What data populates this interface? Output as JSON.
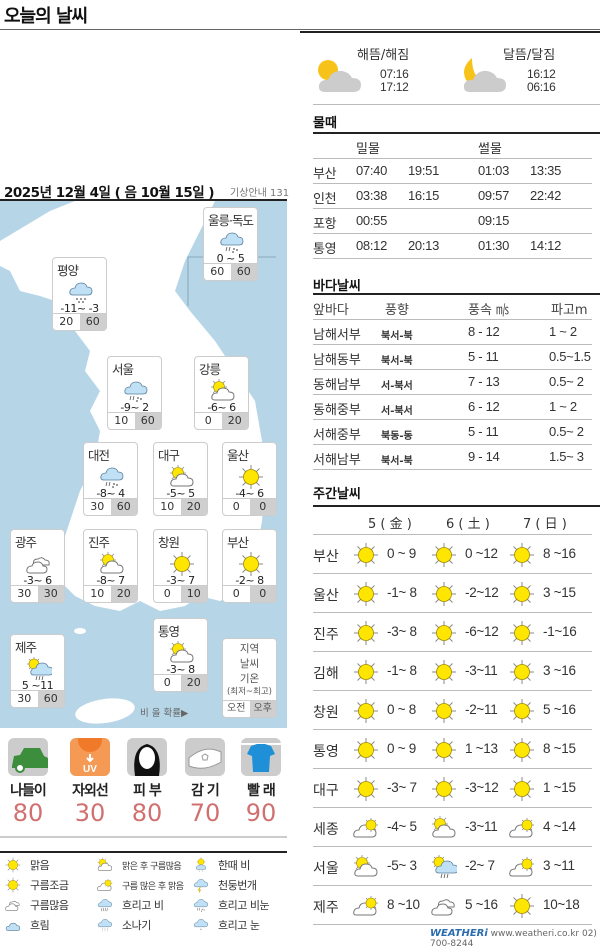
{
  "header": {
    "title": "오늘의 날씨"
  },
  "date_line": {
    "date": "2025년 12월 4일 ( 음 10월 15일 )",
    "hotline": "기상안내 131"
  },
  "map": {
    "cities": [
      {
        "name": "울릉·독도",
        "icon": "rainsnow",
        "temp": "0 ~ 5",
        "am": "60",
        "pm": "60"
      },
      {
        "name": "평양",
        "icon": "snow",
        "temp": "-11~ -3",
        "am": "20",
        "pm": "60"
      },
      {
        "name": "서울",
        "icon": "rainsnow",
        "temp": "-9~ 2",
        "am": "10",
        "pm": "60"
      },
      {
        "name": "강릉",
        "icon": "suncloud",
        "temp": "-6~ 6",
        "am": "0",
        "pm": "20"
      },
      {
        "name": "대전",
        "icon": "rainsnow",
        "temp": "-8~ 4",
        "am": "30",
        "pm": "60"
      },
      {
        "name": "대구",
        "icon": "suncloud",
        "temp": "-5~ 5",
        "am": "10",
        "pm": "20"
      },
      {
        "name": "울산",
        "icon": "sun",
        "temp": "-4~ 6",
        "am": "0",
        "pm": "0"
      },
      {
        "name": "광주",
        "icon": "cloudy2",
        "temp": "-3~ 6",
        "am": "30",
        "pm": "30"
      },
      {
        "name": "진주",
        "icon": "suncloud",
        "temp": "-8~ 7",
        "am": "10",
        "pm": "20"
      },
      {
        "name": "창원",
        "icon": "sun",
        "temp": "-3~ 7",
        "am": "0",
        "pm": "10"
      },
      {
        "name": "부산",
        "icon": "sun",
        "temp": "-2~ 8",
        "am": "0",
        "pm": "0"
      },
      {
        "name": "통영",
        "icon": "suncloud",
        "temp": "-3~ 8",
        "am": "0",
        "pm": "20"
      },
      {
        "name": "제주",
        "icon": "sunrain",
        "temp": "5 ~11",
        "am": "30",
        "pm": "60"
      }
    ],
    "legend": {
      "region": "지역",
      "weather": "날씨",
      "temp": "기온",
      "range": "(최저~최고)",
      "am": "오전",
      "pm": "오후",
      "prob_label": "비 올 확률▶"
    }
  },
  "indices": [
    {
      "label": "나들이",
      "value": "80",
      "icon": "car-icon"
    },
    {
      "label": "자외선",
      "value": "30",
      "icon": "uv-sun-icon"
    },
    {
      "label": "피 부",
      "value": "80",
      "icon": "face-icon"
    },
    {
      "label": "감 기",
      "value": "70",
      "icon": "mask-icon"
    },
    {
      "label": "빨 래",
      "value": "90",
      "icon": "laundry-shirt-icon"
    }
  ],
  "weather_legend": [
    {
      "icon": "sun",
      "label": "맑음"
    },
    {
      "icon": "suncloud",
      "label": "맑은 후 구름많음",
      "small": true
    },
    {
      "icon": "sunshower",
      "label": "한때 비"
    },
    {
      "icon": "sun",
      "label": "구름조금"
    },
    {
      "icon": "cloudsun",
      "label": "구름 많은 후 맑음",
      "small": true
    },
    {
      "icon": "thunder",
      "label": "천둥번개"
    },
    {
      "icon": "cloudy2",
      "label": "구름많음"
    },
    {
      "icon": "rain",
      "label": "흐리고 비"
    },
    {
      "icon": "rainsnow",
      "label": "흐리고 비눈"
    },
    {
      "icon": "cloudout",
      "label": "흐림"
    },
    {
      "icon": "shower",
      "label": "소나기"
    },
    {
      "icon": "cloudsnow",
      "label": "흐리고 눈"
    }
  ],
  "sun_moon": {
    "sun_label": "해뜸/해짐",
    "sunrise": "07:16",
    "sunset": "17:12",
    "moon_label": "달뜸/달짐",
    "moonrise": "16:12",
    "moonset": "06:16"
  },
  "tide": {
    "title": "물때",
    "high_label": "밀물",
    "low_label": "썰물",
    "rows": [
      {
        "place": "부산",
        "h1": "07:40",
        "h2": "19:51",
        "l1": "01:03",
        "l2": "13:35"
      },
      {
        "place": "인천",
        "h1": "03:38",
        "h2": "16:15",
        "l1": "09:57",
        "l2": "22:42"
      },
      {
        "place": "포항",
        "h1": "00:55",
        "h2": "",
        "l1": "09:15",
        "l2": ""
      },
      {
        "place": "통영",
        "h1": "08:12",
        "h2": "20:13",
        "l1": "01:30",
        "l2": "14:12"
      }
    ]
  },
  "sea": {
    "title": "바다날씨",
    "headers": [
      "앞바다",
      "풍향",
      "풍속 ㎧",
      "파고m"
    ],
    "rows": [
      {
        "area": "남해서부",
        "dir": "북서-북",
        "speed": "8 - 12",
        "wave": "1 ~ 2"
      },
      {
        "area": "남해동부",
        "dir": "북서-북",
        "speed": "5 - 11",
        "wave": "0.5~1.5"
      },
      {
        "area": "동해남부",
        "dir": "서-북서",
        "speed": "7 - 13",
        "wave": "0.5~ 2"
      },
      {
        "area": "동해중부",
        "dir": "서-북서",
        "speed": "6 - 12",
        "wave": "1 ~ 2"
      },
      {
        "area": "서해중부",
        "dir": "북동-동",
        "speed": "5 - 11",
        "wave": "0.5~ 2"
      },
      {
        "area": "서해남부",
        "dir": "북서-북",
        "speed": "9 - 14",
        "wave": "1.5~ 3"
      }
    ]
  },
  "weekly": {
    "title": "주간날씨",
    "days": [
      "5 ( 金 )",
      "6 ( 土 )",
      "7 ( 日 )"
    ],
    "rows": [
      {
        "city": "부산",
        "d": [
          [
            "sun",
            "0 ~ 9"
          ],
          [
            "sun",
            "0 ~12"
          ],
          [
            "sun",
            "8 ~16"
          ]
        ]
      },
      {
        "city": "울산",
        "d": [
          [
            "sun",
            "-1~ 8"
          ],
          [
            "sun",
            "-2~12"
          ],
          [
            "sun",
            "3 ~15"
          ]
        ]
      },
      {
        "city": "진주",
        "d": [
          [
            "sun",
            "-3~ 8"
          ],
          [
            "sun",
            "-6~12"
          ],
          [
            "sun",
            "-1~16"
          ]
        ]
      },
      {
        "city": "김해",
        "d": [
          [
            "sun",
            "-1~ 8"
          ],
          [
            "sun",
            "-3~11"
          ],
          [
            "sun",
            "3 ~16"
          ]
        ]
      },
      {
        "city": "창원",
        "d": [
          [
            "sun",
            "0 ~ 8"
          ],
          [
            "sun",
            "-2~11"
          ],
          [
            "sun",
            "5 ~16"
          ]
        ]
      },
      {
        "city": "통영",
        "d": [
          [
            "sun",
            "0 ~ 9"
          ],
          [
            "sun",
            "1 ~13"
          ],
          [
            "sun",
            "8 ~15"
          ]
        ]
      },
      {
        "city": "대구",
        "d": [
          [
            "sun",
            "-3~ 7"
          ],
          [
            "sun",
            "-3~12"
          ],
          [
            "sun",
            "1 ~15"
          ]
        ]
      },
      {
        "city": "세종",
        "d": [
          [
            "cloudsun",
            "-4~ 5"
          ],
          [
            "suncloud",
            "-3~11"
          ],
          [
            "cloudsun",
            "4 ~14"
          ]
        ]
      },
      {
        "city": "서울",
        "d": [
          [
            "suncloud",
            "-5~ 3"
          ],
          [
            "sunrain",
            "-2~ 7"
          ],
          [
            "cloudsun",
            "3 ~11"
          ]
        ]
      },
      {
        "city": "제주",
        "d": [
          [
            "cloudsun",
            "8 ~10"
          ],
          [
            "cloudy2",
            "5 ~16"
          ],
          [
            "sun",
            "10~18"
          ]
        ]
      }
    ]
  },
  "footer": {
    "brand": "WEATHERi",
    "contact": "www.weatheri.co.kr 02) 700-8244"
  },
  "colors": {
    "sea": "#b6d6e8",
    "index_value": "#d07070",
    "sun": "#ffe600"
  }
}
